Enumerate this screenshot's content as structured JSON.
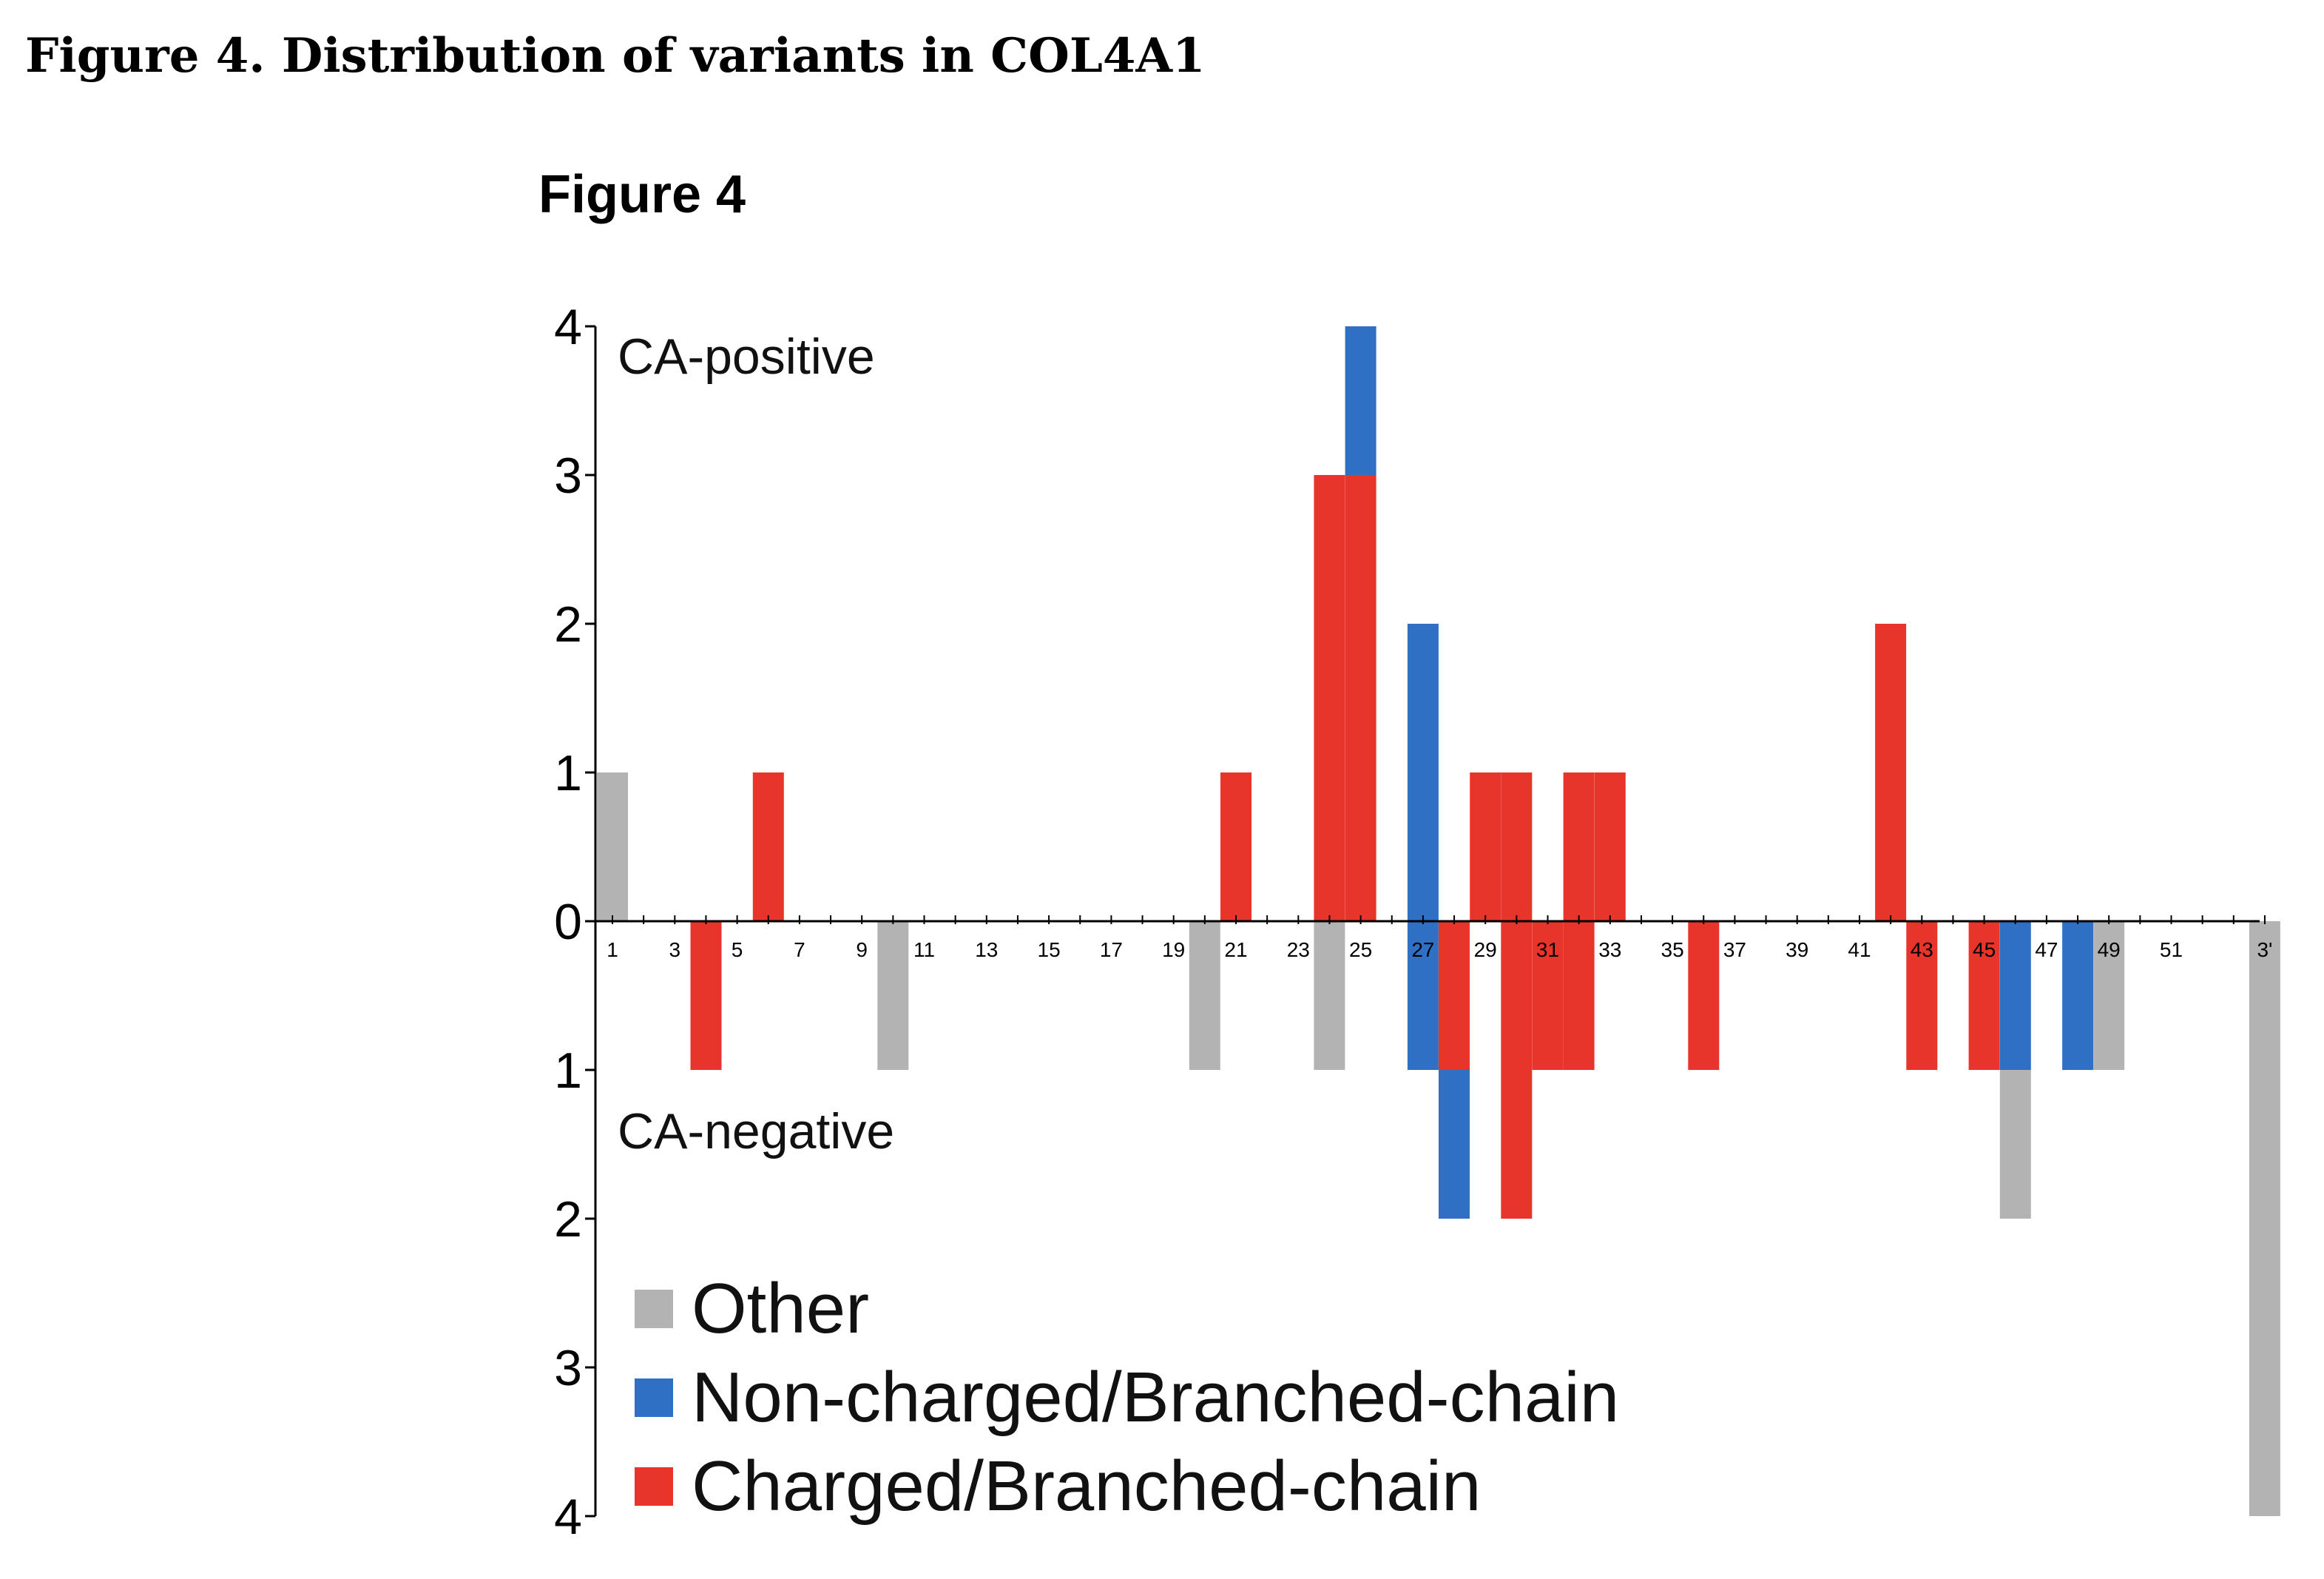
{
  "caption": "Figure 4. Distribution of variants in COL4A1",
  "figure_label": "Figure 4",
  "colors": {
    "Other": "#b3b3b3",
    "Non-charged/Branched-chain": "#2f6fc4",
    "Charged/Branched-chain": "#e8352b",
    "axis": "#000000"
  },
  "chart_data": {
    "type": "bar",
    "title": "Figure 4",
    "xlabel": "",
    "ylabel": "",
    "ylim": [
      -4,
      4
    ],
    "region_labels": {
      "positive": "CA-positive",
      "negative": "CA-negative"
    },
    "y_ticks": [
      {
        "value": 4,
        "label": "4"
      },
      {
        "value": 3,
        "label": "3"
      },
      {
        "value": 2,
        "label": "2"
      },
      {
        "value": 1,
        "label": "1"
      },
      {
        "value": 0,
        "label": "0"
      },
      {
        "value": -1,
        "label": "1"
      },
      {
        "value": -2,
        "label": "2"
      },
      {
        "value": -3,
        "label": "3"
      },
      {
        "value": -4,
        "label": "4"
      }
    ],
    "x_tick_labels": [
      "1",
      "3",
      "5",
      "7",
      "9",
      "11",
      "13",
      "15",
      "17",
      "19",
      "21",
      "23",
      "25",
      "27",
      "29",
      "31",
      "33",
      "35",
      "37",
      "39",
      "41",
      "43",
      "45",
      "47",
      "49",
      "51",
      "3'"
    ],
    "legend": [
      "Other",
      "Non-charged/Branched-chain",
      "Charged/Branched-chain"
    ],
    "bars": [
      {
        "exon": 1,
        "series": "Other",
        "from": 0,
        "to": 1
      },
      {
        "exon": 4,
        "series": "Charged/Branched-chain",
        "from": 0,
        "to": -1
      },
      {
        "exon": 6,
        "series": "Charged/Branched-chain",
        "from": 0,
        "to": 1
      },
      {
        "exon": 10,
        "series": "Other",
        "from": 0,
        "to": -1
      },
      {
        "exon": 20,
        "series": "Other",
        "from": 0,
        "to": -1
      },
      {
        "exon": 21,
        "series": "Charged/Branched-chain",
        "from": 0,
        "to": 1
      },
      {
        "exon": 24,
        "series": "Charged/Branched-chain",
        "from": 0,
        "to": 3
      },
      {
        "exon": 24,
        "series": "Other",
        "from": 0,
        "to": -1
      },
      {
        "exon": 25,
        "series": "Charged/Branched-chain",
        "from": 0,
        "to": 3
      },
      {
        "exon": 25,
        "series": "Non-charged/Branched-chain",
        "from": 3,
        "to": 4
      },
      {
        "exon": 27,
        "series": "Non-charged/Branched-chain",
        "from": 0,
        "to": 2
      },
      {
        "exon": 27,
        "series": "Non-charged/Branched-chain",
        "from": 0,
        "to": -1
      },
      {
        "exon": 28,
        "series": "Charged/Branched-chain",
        "from": 0,
        "to": -1
      },
      {
        "exon": 28,
        "series": "Non-charged/Branched-chain",
        "from": -1,
        "to": -2
      },
      {
        "exon": 29,
        "series": "Charged/Branched-chain",
        "from": 0,
        "to": 1
      },
      {
        "exon": 30,
        "series": "Charged/Branched-chain",
        "from": 0,
        "to": 1
      },
      {
        "exon": 30,
        "series": "Charged/Branched-chain",
        "from": 0,
        "to": -2
      },
      {
        "exon": 31,
        "series": "Charged/Branched-chain",
        "from": 0,
        "to": -1
      },
      {
        "exon": 32,
        "series": "Charged/Branched-chain",
        "from": 0,
        "to": 1
      },
      {
        "exon": 32,
        "series": "Charged/Branched-chain",
        "from": 0,
        "to": -1
      },
      {
        "exon": 33,
        "series": "Charged/Branched-chain",
        "from": 0,
        "to": 1
      },
      {
        "exon": 36,
        "series": "Charged/Branched-chain",
        "from": 0,
        "to": -1
      },
      {
        "exon": 42,
        "series": "Charged/Branched-chain",
        "from": 0,
        "to": 2
      },
      {
        "exon": 43,
        "series": "Charged/Branched-chain",
        "from": 0,
        "to": -1
      },
      {
        "exon": 45,
        "series": "Charged/Branched-chain",
        "from": 0,
        "to": -1
      },
      {
        "exon": 46,
        "series": "Non-charged/Branched-chain",
        "from": 0,
        "to": -1
      },
      {
        "exon": 46,
        "series": "Other",
        "from": -1,
        "to": -2
      },
      {
        "exon": 48,
        "series": "Non-charged/Branched-chain",
        "from": 0,
        "to": -1
      },
      {
        "exon": 49,
        "series": "Other",
        "from": 0,
        "to": -1
      },
      {
        "exon": "3'",
        "series": "Other",
        "from": 0,
        "to": -4
      }
    ]
  }
}
